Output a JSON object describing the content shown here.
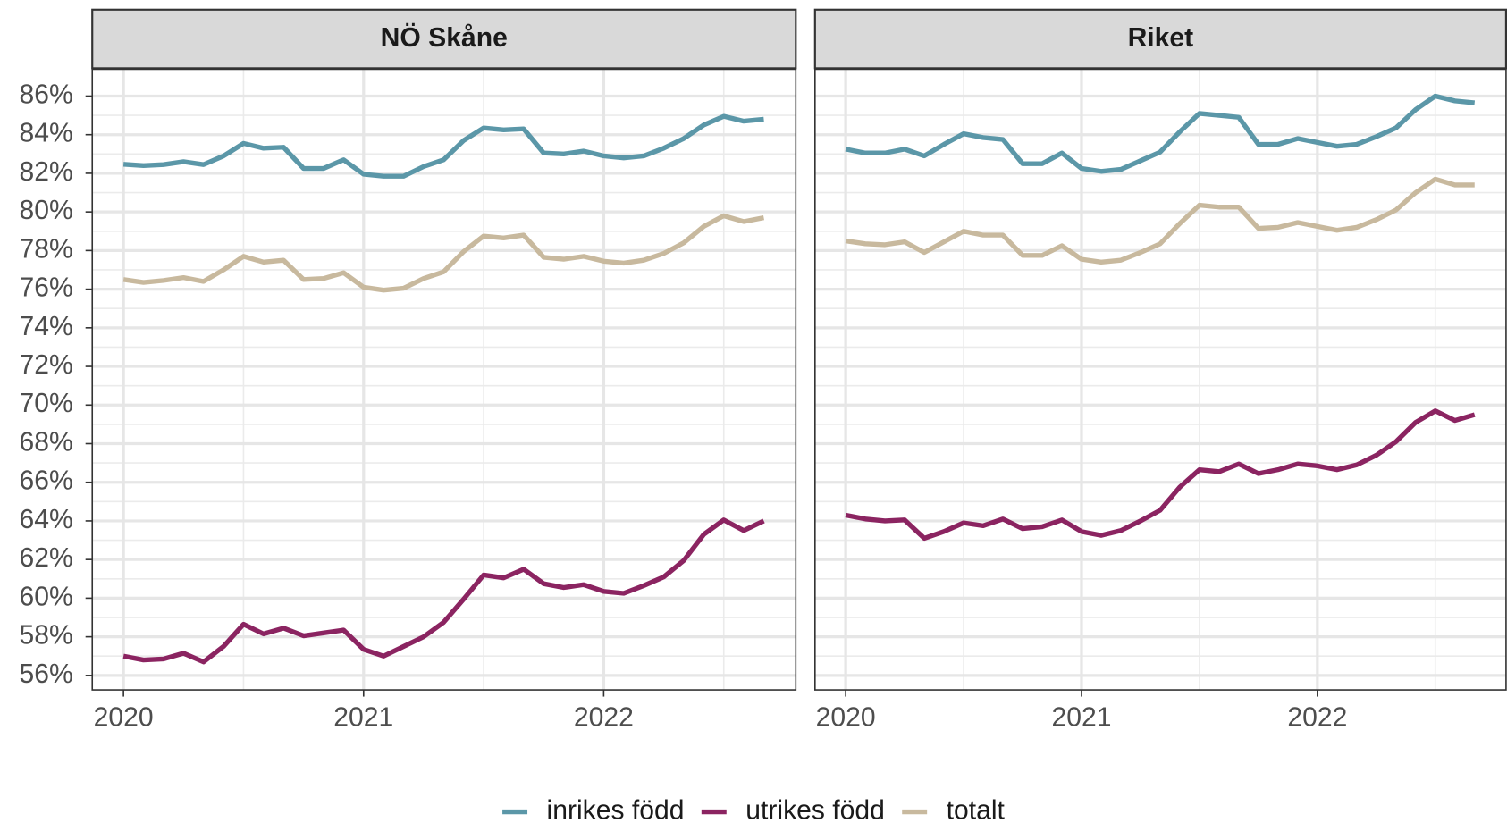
{
  "chart_data": [
    {
      "type": "line",
      "title": "NÖ Skåne",
      "x": [
        2020,
        2020.0833,
        2020.1667,
        2020.25,
        2020.3333,
        2020.4167,
        2020.5,
        2020.5833,
        2020.6667,
        2020.75,
        2020.8333,
        2020.9167,
        2021,
        2021.0833,
        2021.1667,
        2021.25,
        2021.3333,
        2021.4167,
        2021.5,
        2021.5833,
        2021.6667,
        2021.75,
        2021.8333,
        2021.9167,
        2022,
        2022.0833,
        2022.1667,
        2022.25,
        2022.3333,
        2022.4167,
        2022.5,
        2022.5833,
        2022.6667
      ],
      "series": [
        {
          "name": "inrikes född",
          "color": "#5b97a8",
          "values": [
            82.47,
            82.4,
            82.45,
            82.6,
            82.45,
            82.9,
            83.55,
            83.3,
            83.35,
            82.25,
            82.25,
            82.7,
            81.95,
            81.85,
            81.85,
            82.35,
            82.7,
            83.7,
            84.35,
            84.25,
            84.3,
            83.05,
            83.0,
            83.15,
            82.9,
            82.8,
            82.9,
            83.3,
            83.8,
            84.5,
            84.95,
            84.7,
            84.8
          ]
        },
        {
          "name": "utrikes född",
          "color": "#8b2461",
          "values": [
            57.0,
            56.8,
            56.85,
            57.15,
            56.7,
            57.5,
            58.65,
            58.15,
            58.45,
            58.05,
            58.2,
            58.35,
            57.35,
            57.0,
            57.5,
            58.0,
            58.75,
            59.95,
            61.2,
            61.05,
            61.5,
            60.75,
            60.55,
            60.7,
            60.35,
            60.25,
            60.65,
            61.1,
            61.95,
            63.3,
            64.05,
            63.5,
            64.0
          ]
        },
        {
          "name": "totalt",
          "color": "#c8b99e",
          "values": [
            76.5,
            76.35,
            76.45,
            76.6,
            76.4,
            77.0,
            77.7,
            77.4,
            77.5,
            76.5,
            76.55,
            76.85,
            76.1,
            75.95,
            76.05,
            76.55,
            76.9,
            77.95,
            78.75,
            78.65,
            78.8,
            77.65,
            77.55,
            77.7,
            77.45,
            77.35,
            77.5,
            77.85,
            78.4,
            79.25,
            79.8,
            79.5,
            79.7
          ]
        }
      ],
      "xlim": [
        2019.87,
        2022.8
      ],
      "xticks": [
        2020,
        2021,
        2022
      ],
      "ylim": [
        55.25,
        87.39
      ],
      "yticks": [
        {
          "value": 56,
          "label": "56%"
        },
        {
          "value": 58,
          "label": "58%"
        },
        {
          "value": 60,
          "label": "60%"
        },
        {
          "value": 62,
          "label": "62%"
        },
        {
          "value": 64,
          "label": "64%"
        },
        {
          "value": 66,
          "label": "66%"
        },
        {
          "value": 68,
          "label": "68%"
        },
        {
          "value": 70,
          "label": "70%"
        },
        {
          "value": 72,
          "label": "72%"
        },
        {
          "value": 74,
          "label": "74%"
        },
        {
          "value": 76,
          "label": "76%"
        },
        {
          "value": 78,
          "label": "78%"
        },
        {
          "value": 80,
          "label": "80%"
        },
        {
          "value": 82,
          "label": "82%"
        },
        {
          "value": 84,
          "label": "84%"
        },
        {
          "value": 86,
          "label": "86%"
        }
      ],
      "grid": true
    },
    {
      "type": "line",
      "title": "Riket",
      "x": [
        2020,
        2020.0833,
        2020.1667,
        2020.25,
        2020.3333,
        2020.4167,
        2020.5,
        2020.5833,
        2020.6667,
        2020.75,
        2020.8333,
        2020.9167,
        2021,
        2021.0833,
        2021.1667,
        2021.25,
        2021.3333,
        2021.4167,
        2021.5,
        2021.5833,
        2021.6667,
        2021.75,
        2021.8333,
        2021.9167,
        2022,
        2022.0833,
        2022.1667,
        2022.25,
        2022.3333,
        2022.4167,
        2022.5,
        2022.5833,
        2022.6667
      ],
      "series": [
        {
          "name": "inrikes född",
          "color": "#5b97a8",
          "values": [
            83.25,
            83.05,
            83.05,
            83.25,
            82.9,
            83.5,
            84.05,
            83.85,
            83.75,
            82.5,
            82.5,
            83.05,
            82.25,
            82.1,
            82.2,
            82.65,
            83.1,
            84.15,
            85.1,
            85.0,
            84.9,
            83.5,
            83.5,
            83.8,
            83.6,
            83.4,
            83.5,
            83.9,
            84.35,
            85.3,
            86.0,
            85.75,
            85.65
          ]
        },
        {
          "name": "utrikes född",
          "color": "#8b2461",
          "values": [
            64.3,
            64.1,
            64.0,
            64.05,
            63.1,
            63.45,
            63.9,
            63.75,
            64.1,
            63.6,
            63.7,
            64.05,
            63.45,
            63.25,
            63.5,
            64.0,
            64.55,
            65.75,
            66.65,
            66.55,
            66.95,
            66.45,
            66.65,
            66.95,
            66.85,
            66.65,
            66.9,
            67.4,
            68.1,
            69.1,
            69.7,
            69.2,
            69.5
          ]
        },
        {
          "name": "totalt",
          "color": "#c8b99e",
          "values": [
            78.5,
            78.35,
            78.3,
            78.45,
            77.9,
            78.45,
            79.0,
            78.8,
            78.8,
            77.75,
            77.75,
            78.25,
            77.55,
            77.4,
            77.5,
            77.9,
            78.35,
            79.4,
            80.35,
            80.25,
            80.25,
            79.15,
            79.2,
            79.45,
            79.25,
            79.05,
            79.2,
            79.6,
            80.1,
            81.0,
            81.7,
            81.4,
            81.4
          ]
        }
      ],
      "xlim": [
        2019.87,
        2022.8
      ],
      "xticks": [
        2020,
        2021,
        2022
      ],
      "ylim": [
        55.25,
        87.39
      ],
      "yticks": [
        {
          "value": 56,
          "label": "56%"
        },
        {
          "value": 58,
          "label": "58%"
        },
        {
          "value": 60,
          "label": "60%"
        },
        {
          "value": 62,
          "label": "62%"
        },
        {
          "value": 64,
          "label": "64%"
        },
        {
          "value": 66,
          "label": "66%"
        },
        {
          "value": 68,
          "label": "68%"
        },
        {
          "value": 70,
          "label": "70%"
        },
        {
          "value": 72,
          "label": "72%"
        },
        {
          "value": 74,
          "label": "74%"
        },
        {
          "value": 76,
          "label": "76%"
        },
        {
          "value": 78,
          "label": "78%"
        },
        {
          "value": 80,
          "label": "80%"
        },
        {
          "value": 82,
          "label": "82%"
        },
        {
          "value": 84,
          "label": "84%"
        },
        {
          "value": 86,
          "label": "86%"
        }
      ],
      "grid": true
    }
  ]
}
